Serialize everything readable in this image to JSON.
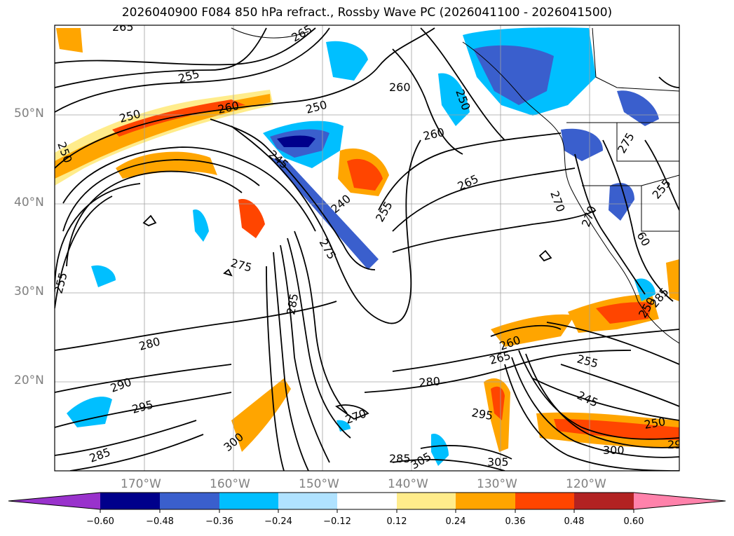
{
  "title": "2026040900 F084 850 hPa refract., Rossby Wave PC (2026041100 - 2026041500)",
  "axes": {
    "lat_labels": [
      "50°N",
      "40°N",
      "30°N",
      "20°N"
    ],
    "lon_labels": [
      "170°W",
      "160°W",
      "150°W",
      "140°W",
      "130°W",
      "120°W"
    ]
  },
  "colorbar": {
    "colors": [
      "#9932cc",
      "#00008b",
      "#3a5fcd",
      "#00bfff",
      "#b0e2ff",
      "#ffffff",
      "#ffec8b",
      "#ffa500",
      "#ff4500",
      "#b22222",
      "#ff82ab"
    ],
    "ticks": [
      "−0.60",
      "−0.48",
      "−0.36",
      "−0.24",
      "−0.12",
      "0.12",
      "0.24",
      "0.36",
      "0.48",
      "0.60"
    ]
  },
  "contour_labels": [
    "265",
    "265",
    "255",
    "250",
    "260",
    "250",
    "250",
    "260",
    "250",
    "260",
    "245",
    "265",
    "255",
    "240",
    "275",
    "270",
    "270",
    "275",
    "275",
    "60",
    "255",
    "285",
    "280",
    "260",
    "265",
    "255",
    "250",
    "280",
    "245",
    "290",
    "295",
    "270",
    "295",
    "250",
    "300",
    "285",
    "305",
    "305",
    "300",
    "285",
    "255",
    "285",
    "29"
  ]
}
